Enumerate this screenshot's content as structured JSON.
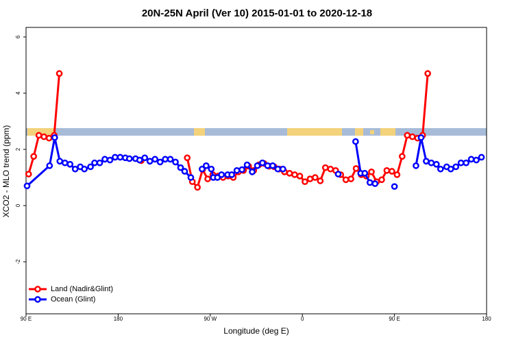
{
  "chart_data": {
    "type": "line",
    "title": "20N-25N April (Ver 10)   2015-01-01 to 2020-12-18",
    "x_label": "Longitude (deg E)",
    "y_label": "XCO2 - MLO trend (ppm)",
    "xlim": [
      90,
      540
    ],
    "ylim": [
      -3.85,
      6.34
    ],
    "xticks": [
      {
        "value": 90,
        "label": "90 E"
      },
      {
        "value": 180,
        "label": "180"
      },
      {
        "value": 270,
        "label": "90 W"
      },
      {
        "value": 360,
        "label": "0"
      },
      {
        "value": 450,
        "label": "90 E"
      },
      {
        "value": 540,
        "label": "180"
      }
    ],
    "yticks": [
      -2,
      0,
      2,
      4,
      6
    ],
    "legend": "bottomleft",
    "series": [
      {
        "name": "Land (Nadir&Glint)",
        "color": "#ff0000",
        "x": [
          92.5,
          97.5,
          102.5,
          107.5,
          112.5,
          117.5,
          122.5,
          160,
          202.5,
          230,
          247.5,
          252.5,
          257.5,
          262.5,
          267.5,
          272.5,
          277.5,
          282.5,
          287.5,
          292.5,
          297.5,
          302.5,
          307.5,
          312.5,
          317.5,
          322.5,
          327.5,
          332.5,
          337.5,
          342.5,
          347.5,
          352.5,
          357.5,
          362.5,
          367.5,
          372.5,
          377.5,
          382.5,
          387.5,
          392.5,
          397.5,
          402.5,
          407.5,
          412.5,
          417.5,
          422.5,
          427.5,
          432.5,
          437.5,
          442.5,
          447.5,
          452.5,
          457.5,
          462.5,
          467.5,
          472.5,
          477.5,
          482.5
        ],
        "values": [
          1.12,
          1.75,
          2.5,
          2.45,
          2.4,
          2.5,
          4.7,
          null,
          1.6,
          null,
          1.7,
          0.85,
          0.65,
          1.28,
          0.95,
          1.1,
          1.05,
          1.0,
          1.05,
          1.0,
          1.2,
          1.25,
          1.4,
          1.25,
          1.45,
          1.5,
          1.4,
          1.38,
          1.3,
          1.2,
          1.15,
          1.1,
          1.05,
          0.85,
          0.95,
          1.0,
          0.88,
          1.35,
          1.3,
          1.25,
          1.1,
          0.92,
          0.95,
          1.32,
          1.1,
          1.05,
          1.2,
          0.85,
          0.92,
          1.25,
          1.22,
          1.1,
          1.75,
          2.5,
          2.45,
          2.4,
          2.5,
          4.7
        ]
      },
      {
        "name": "Ocean (Glint)",
        "color": "#0000ff",
        "x": [
          91,
          113,
          118,
          123,
          128,
          133,
          138,
          143,
          147,
          153,
          157,
          162,
          167,
          172,
          177,
          182,
          187,
          191,
          197,
          201,
          206,
          211,
          216,
          221,
          226,
          231,
          236,
          241,
          245,
          251,
          256,
          262,
          266,
          271,
          273,
          277,
          281,
          287,
          291,
          296,
          301,
          306,
          311,
          316,
          321,
          326,
          331,
          336,
          341,
          368,
          395,
          403,
          412,
          417,
          421,
          426,
          431,
          440,
          450,
          460,
          471,
          476,
          481,
          486,
          491,
          495,
          501,
          505,
          510,
          515,
          520,
          525,
          530,
          535
        ],
        "values": [
          0.7,
          1.42,
          2.42,
          1.58,
          1.52,
          1.47,
          1.3,
          1.38,
          1.3,
          1.38,
          1.52,
          1.52,
          1.65,
          1.62,
          1.72,
          1.72,
          1.7,
          1.67,
          1.67,
          1.62,
          1.7,
          1.58,
          1.65,
          1.55,
          1.65,
          1.65,
          1.55,
          1.35,
          1.22,
          1.0,
          null,
          1.3,
          1.42,
          1.3,
          1.0,
          1.0,
          1.1,
          1.1,
          1.1,
          1.25,
          1.28,
          1.45,
          1.2,
          1.42,
          1.52,
          1.42,
          1.42,
          1.3,
          1.3,
          null,
          1.12,
          null,
          2.28,
          1.15,
          1.15,
          0.82,
          0.78,
          null,
          0.68,
          null,
          1.42,
          2.42,
          1.58,
          1.52,
          1.47,
          1.3,
          1.38,
          1.3,
          1.38,
          1.52,
          1.52,
          1.65,
          1.62,
          1.72
        ]
      }
    ]
  }
}
